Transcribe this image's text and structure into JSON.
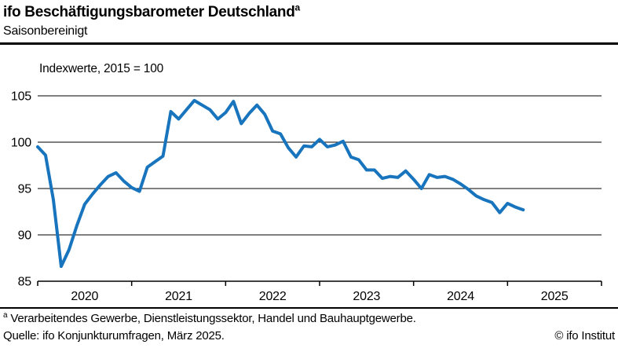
{
  "header": {
    "title": "ifo Beschäftigungsbarometer Deutschland",
    "title_superscript": "a",
    "subtitle": "Saisonbereinigt"
  },
  "chart": {
    "note": "Indexwerte, 2015 = 100",
    "line_color": "#1774bd",
    "grid_color": "#000000"
  },
  "chart_data": {
    "type": "line",
    "title": "ifo Beschäftigungsbarometer Deutschland (saisonbereinigt)",
    "unit": "Indexwerte, 2015 = 100",
    "frequency": "monthly",
    "start": "2020-01",
    "end": "2025-03",
    "ylim": [
      85,
      105
    ],
    "yticks": [
      85,
      90,
      95,
      100,
      105
    ],
    "x_year_labels": [
      "2020",
      "2021",
      "2022",
      "2023",
      "2024",
      "2025"
    ],
    "grid": "horizontal",
    "legend": "none",
    "values": [
      99.5,
      98.6,
      93.8,
      86.6,
      88.4,
      91.0,
      93.3,
      94.4,
      95.4,
      96.3,
      96.7,
      95.8,
      95.1,
      94.7,
      97.3,
      97.9,
      98.5,
      103.3,
      102.5,
      103.5,
      104.5,
      104.0,
      103.5,
      102.5,
      103.2,
      104.4,
      102.0,
      103.1,
      104.0,
      103.0,
      101.2,
      100.9,
      99.4,
      98.4,
      99.6,
      99.5,
      100.3,
      99.5,
      99.7,
      100.1,
      98.4,
      98.1,
      97.0,
      97.0,
      96.1,
      96.3,
      96.2,
      96.9,
      96.0,
      95.0,
      96.5,
      96.2,
      96.3,
      96.0,
      95.5,
      94.9,
      94.2,
      93.8,
      93.5,
      92.4,
      93.4,
      93.0,
      92.7
    ]
  },
  "footer": {
    "footnote_marker": "a",
    "footnote_text": "Verarbeitendes Gewerbe, Dienstleistungssektor, Handel und Bauhauptgewerbe.",
    "source": "Quelle: ifo Konjunkturumfragen, März 2025.",
    "copyright": "© ifo Institut"
  }
}
